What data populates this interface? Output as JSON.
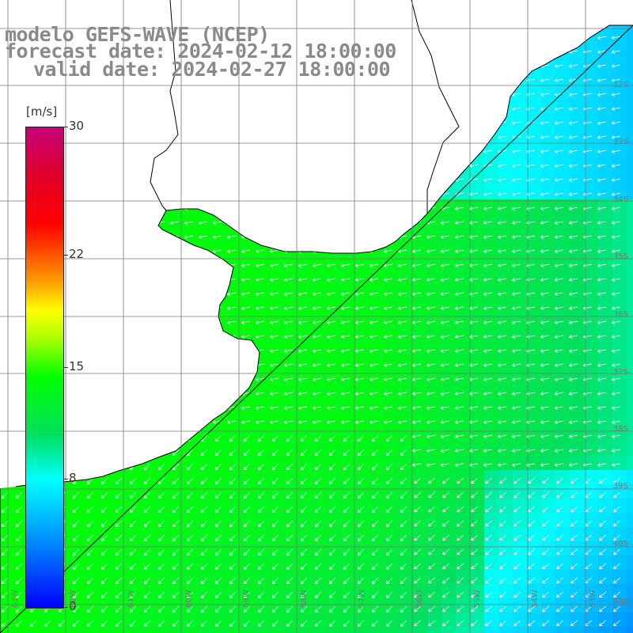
{
  "title": {
    "line1": "modelo GEFS-WAVE (NCEP)",
    "line2": "forecast date: 2024-02-12 18:00:00",
    "line3": "valid date: 2024-02-27 18:00:00"
  },
  "colorbar": {
    "units": "[m/s]",
    "ticks": [
      "30",
      "22",
      "15",
      "8",
      "0"
    ],
    "tick_values": [
      30,
      22,
      15,
      8,
      0
    ],
    "min": 0,
    "max": 30
  },
  "grid": {
    "lat_labels": [
      "32S",
      "33S",
      "34S",
      "35S",
      "36S",
      "37S",
      "38S",
      "39S",
      "40S",
      "41S"
    ],
    "lon_labels": [
      "63W",
      "62W",
      "61W",
      "60W",
      "59W",
      "58W",
      "57W",
      "56W",
      "55W",
      "54W",
      "53W"
    ]
  },
  "colors": {
    "land": "#ffffff",
    "coast": "#000000",
    "grid": "#777777",
    "title": "#8a8a8a",
    "arrow": "#ffffff"
  },
  "wind_field": {
    "direction": "from the northeast (arrows point southwest)",
    "near_coast_speed": "12-14",
    "offshore_speed": "8-9",
    "southeast_speed": "6-7"
  }
}
